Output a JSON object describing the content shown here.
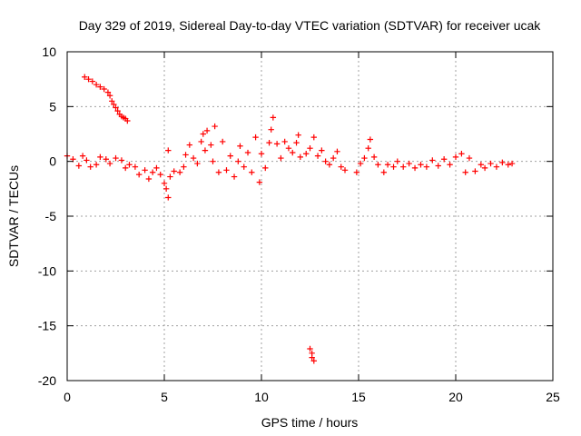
{
  "chart_data": {
    "type": "scatter",
    "title": "Day 329 of 2019, Sidereal Day-to-day VTEC variation (SDTVAR) for receiver ucak",
    "xlabel": "GPS time / hours",
    "ylabel": "SDTVAR / TECUs",
    "xlim": [
      0,
      25
    ],
    "ylim": [
      -20,
      10
    ],
    "xticks": [
      0,
      5,
      10,
      15,
      20,
      25
    ],
    "yticks": [
      -20,
      -15,
      -10,
      -5,
      0,
      5,
      10
    ],
    "grid": true,
    "marker": "+",
    "color": "#ff0000",
    "series": [
      {
        "name": "SDTVAR",
        "points": [
          [
            0.9,
            7.7
          ],
          [
            1.1,
            7.5
          ],
          [
            1.3,
            7.3
          ],
          [
            1.5,
            7.0
          ],
          [
            1.7,
            6.8
          ],
          [
            1.9,
            6.6
          ],
          [
            2.1,
            6.3
          ],
          [
            2.2,
            6.0
          ],
          [
            2.3,
            5.5
          ],
          [
            2.4,
            5.2
          ],
          [
            2.5,
            4.9
          ],
          [
            2.6,
            4.6
          ],
          [
            2.7,
            4.3
          ],
          [
            2.8,
            4.1
          ],
          [
            2.9,
            4.0
          ],
          [
            3.0,
            3.9
          ],
          [
            3.1,
            3.7
          ],
          [
            0.0,
            0.5
          ],
          [
            0.3,
            0.2
          ],
          [
            0.6,
            -0.4
          ],
          [
            0.8,
            0.5
          ],
          [
            1.0,
            0.1
          ],
          [
            1.2,
            -0.5
          ],
          [
            1.5,
            -0.3
          ],
          [
            1.7,
            0.4
          ],
          [
            2.0,
            0.2
          ],
          [
            2.2,
            -0.2
          ],
          [
            2.5,
            0.3
          ],
          [
            2.8,
            0.1
          ],
          [
            3.0,
            -0.6
          ],
          [
            3.2,
            -0.3
          ],
          [
            3.5,
            -0.5
          ],
          [
            3.7,
            -1.2
          ],
          [
            4.0,
            -0.8
          ],
          [
            4.2,
            -1.6
          ],
          [
            4.4,
            -1.0
          ],
          [
            4.6,
            -0.6
          ],
          [
            4.8,
            -1.2
          ],
          [
            5.0,
            -2.0
          ],
          [
            5.1,
            -2.5
          ],
          [
            5.2,
            -3.3
          ],
          [
            5.3,
            -1.4
          ],
          [
            5.5,
            -0.9
          ],
          [
            5.2,
            1.0
          ],
          [
            5.8,
            -1.0
          ],
          [
            6.0,
            -0.5
          ],
          [
            6.1,
            0.6
          ],
          [
            6.3,
            1.5
          ],
          [
            6.5,
            0.3
          ],
          [
            6.7,
            -0.2
          ],
          [
            6.9,
            1.8
          ],
          [
            7.0,
            2.5
          ],
          [
            7.1,
            1.0
          ],
          [
            7.2,
            2.8
          ],
          [
            7.4,
            1.5
          ],
          [
            7.5,
            0.0
          ],
          [
            7.6,
            3.2
          ],
          [
            7.8,
            -1.0
          ],
          [
            8.0,
            1.8
          ],
          [
            8.2,
            -0.8
          ],
          [
            8.4,
            0.5
          ],
          [
            8.6,
            -1.4
          ],
          [
            8.8,
            0.0
          ],
          [
            8.9,
            1.4
          ],
          [
            9.1,
            -0.5
          ],
          [
            9.3,
            0.8
          ],
          [
            9.5,
            -1.0
          ],
          [
            9.7,
            2.2
          ],
          [
            9.9,
            -1.9
          ],
          [
            10.0,
            0.7
          ],
          [
            10.2,
            -0.6
          ],
          [
            10.4,
            1.7
          ],
          [
            10.5,
            2.9
          ],
          [
            10.6,
            4.0
          ],
          [
            10.8,
            1.6
          ],
          [
            11.0,
            0.3
          ],
          [
            11.2,
            1.8
          ],
          [
            11.4,
            1.2
          ],
          [
            11.6,
            0.8
          ],
          [
            11.8,
            1.7
          ],
          [
            11.9,
            2.4
          ],
          [
            12.0,
            0.4
          ],
          [
            12.3,
            0.7
          ],
          [
            12.5,
            1.2
          ],
          [
            12.7,
            2.2
          ],
          [
            12.9,
            0.5
          ],
          [
            13.1,
            1.0
          ],
          [
            13.3,
            0.0
          ],
          [
            13.5,
            -0.3
          ],
          [
            13.7,
            0.3
          ],
          [
            13.9,
            0.9
          ],
          [
            14.1,
            -0.5
          ],
          [
            14.3,
            -0.8
          ],
          [
            12.5,
            -17.1
          ],
          [
            12.6,
            -17.5
          ],
          [
            12.6,
            -17.9
          ],
          [
            12.7,
            -18.2
          ],
          [
            14.9,
            -1.0
          ],
          [
            15.1,
            -0.2
          ],
          [
            15.3,
            0.3
          ],
          [
            15.5,
            1.2
          ],
          [
            15.6,
            2.0
          ],
          [
            15.8,
            0.4
          ],
          [
            16.0,
            -0.3
          ],
          [
            16.3,
            -1.0
          ],
          [
            16.5,
            -0.3
          ],
          [
            16.8,
            -0.5
          ],
          [
            17.0,
            0.0
          ],
          [
            17.3,
            -0.5
          ],
          [
            17.6,
            -0.2
          ],
          [
            17.9,
            -0.6
          ],
          [
            18.2,
            -0.3
          ],
          [
            18.5,
            -0.5
          ],
          [
            18.8,
            0.1
          ],
          [
            19.1,
            -0.4
          ],
          [
            19.4,
            0.2
          ],
          [
            19.7,
            -0.3
          ],
          [
            20.0,
            0.4
          ],
          [
            20.3,
            0.7
          ],
          [
            20.5,
            -1.0
          ],
          [
            20.7,
            0.3
          ],
          [
            21.0,
            -0.9
          ],
          [
            21.3,
            -0.3
          ],
          [
            21.5,
            -0.6
          ],
          [
            21.8,
            -0.2
          ],
          [
            22.1,
            -0.5
          ],
          [
            22.4,
            -0.1
          ],
          [
            22.7,
            -0.3
          ],
          [
            22.9,
            -0.2
          ]
        ]
      }
    ]
  }
}
